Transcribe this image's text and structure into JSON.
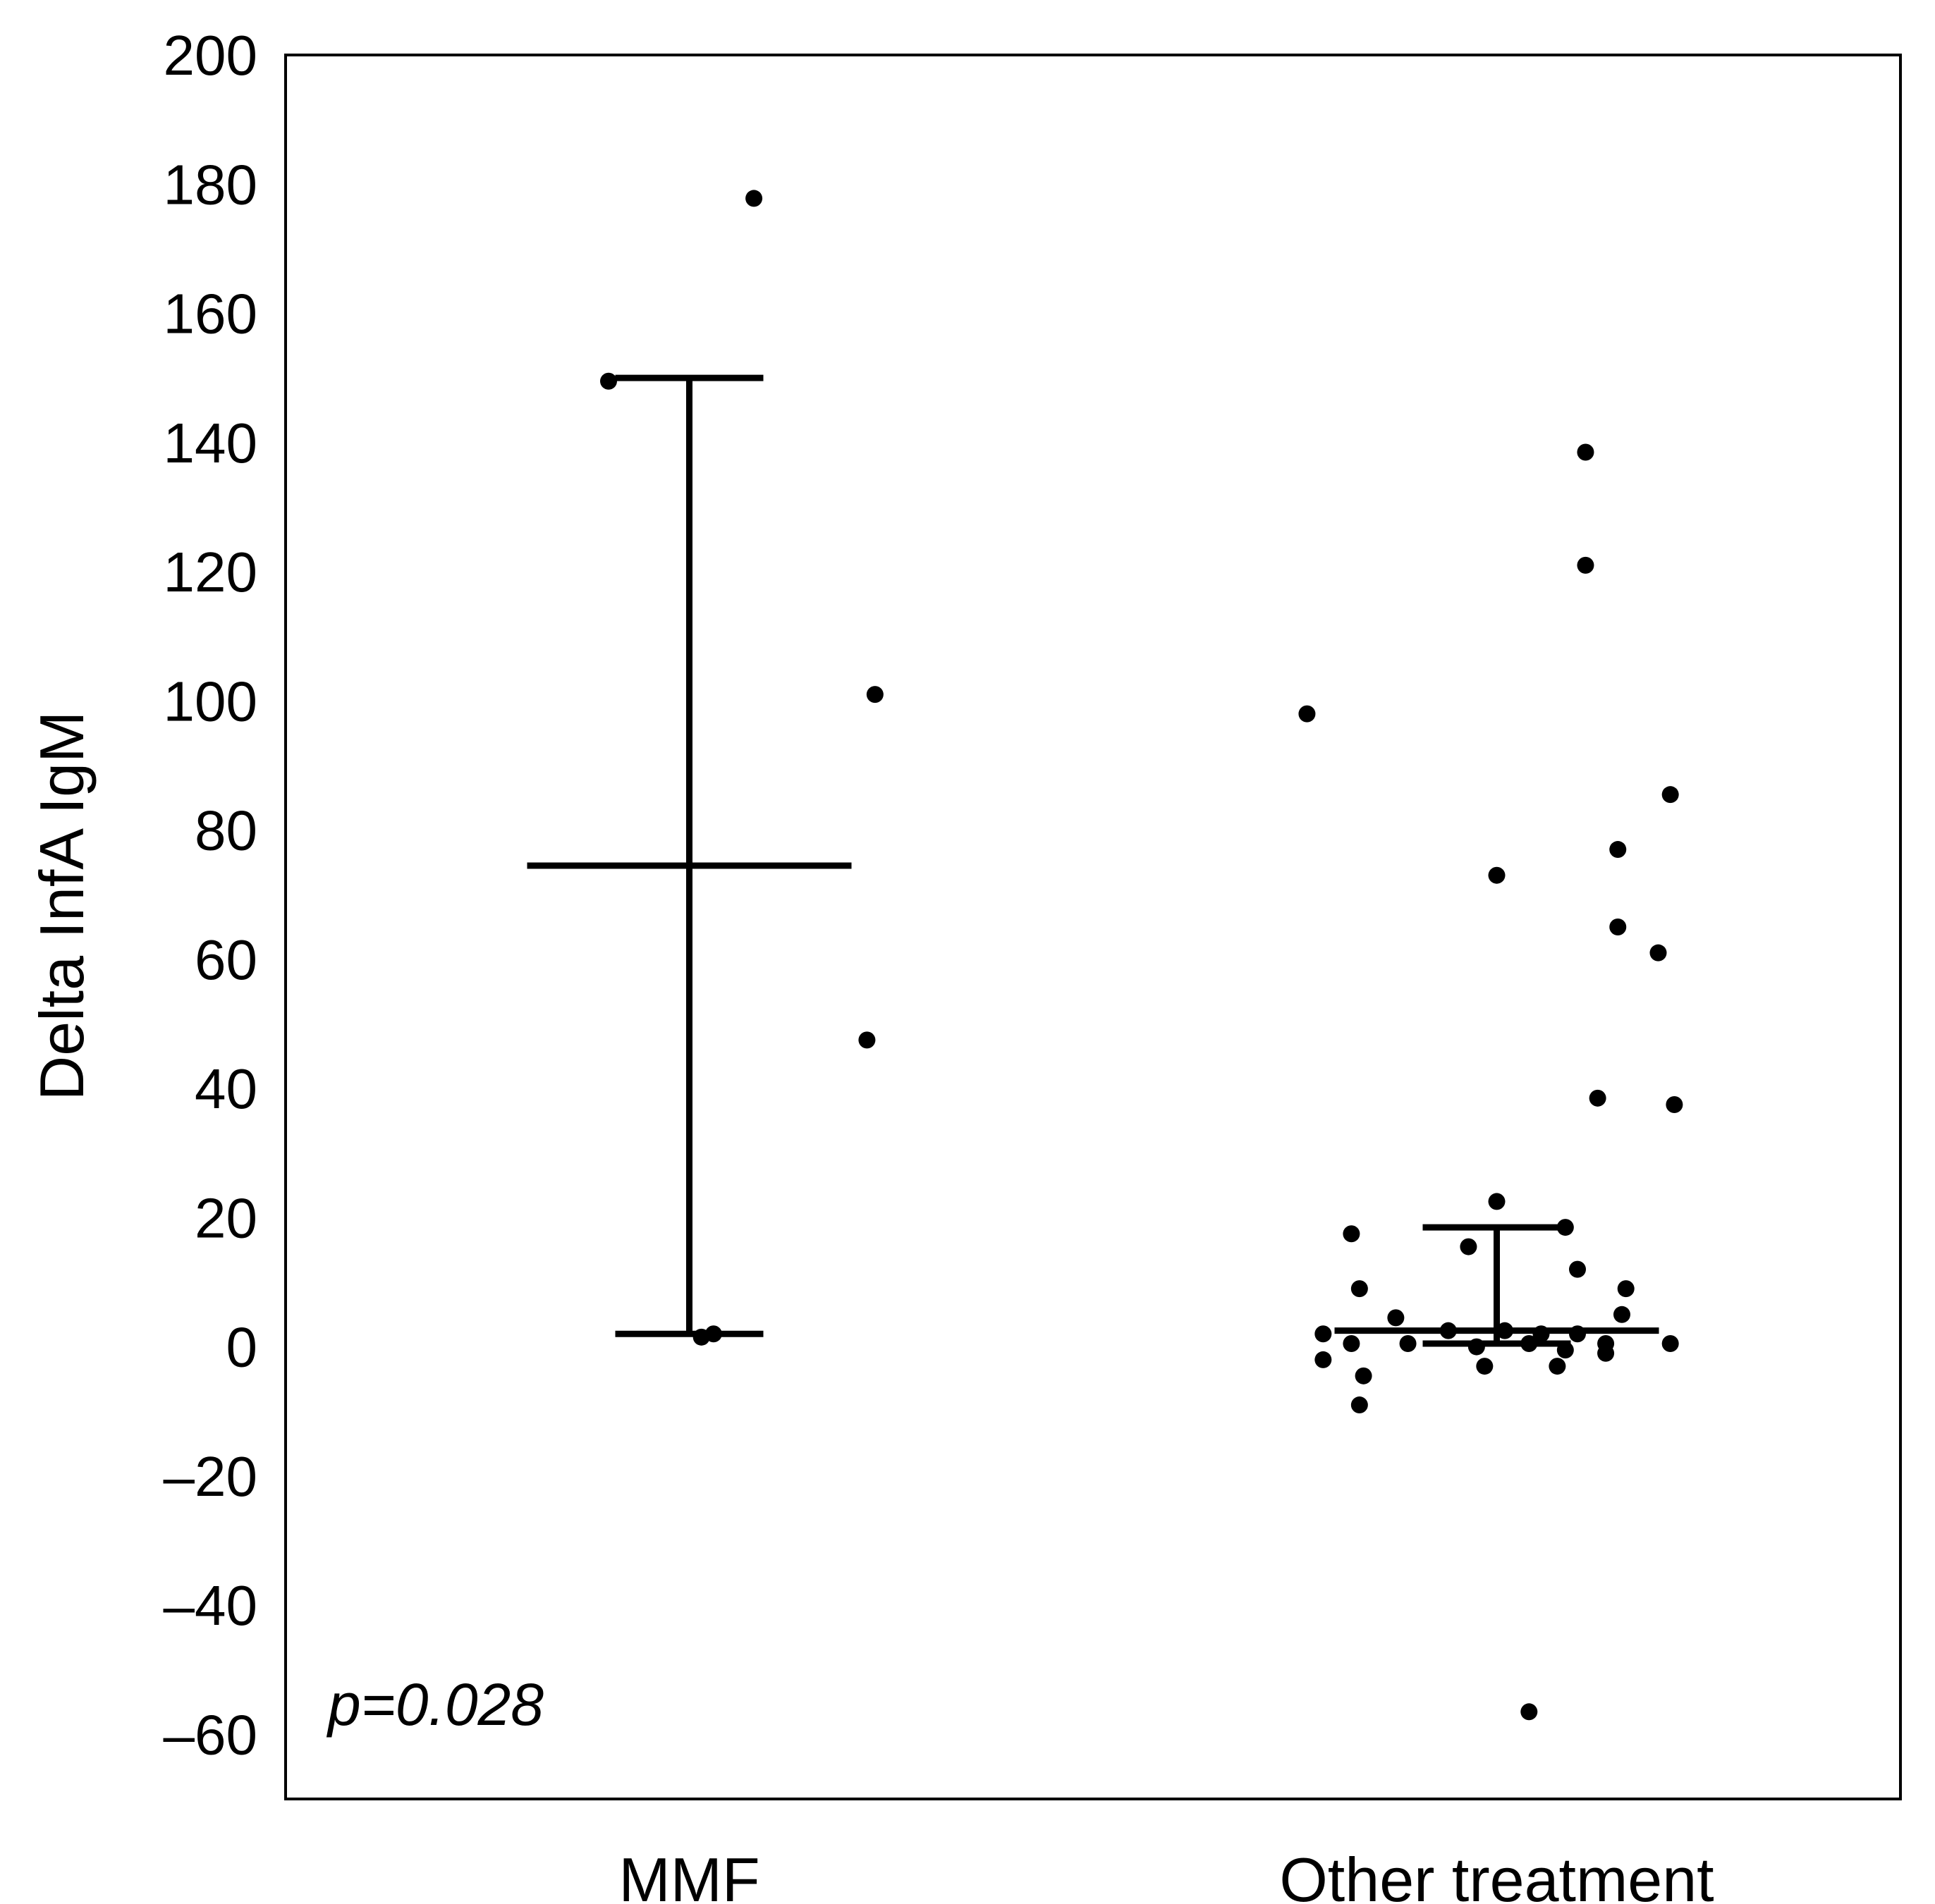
{
  "chart_data": {
    "type": "scatter",
    "title": "",
    "xlabel": "",
    "ylabel": "Delta InfA IgM",
    "ylim": [
      -70,
      200
    ],
    "yticks": [
      200,
      180,
      160,
      140,
      120,
      100,
      80,
      60,
      40,
      20,
      0,
      -20,
      -40,
      -60
    ],
    "ytick_labels": [
      "200",
      "180",
      "160",
      "140",
      "120",
      "100",
      "80",
      "60",
      "40",
      "20",
      "0",
      "–20",
      "–40",
      "–60"
    ],
    "categories": [
      "MMF",
      "Other treatment"
    ],
    "grid": false,
    "annotation": "p=0.028",
    "series": [
      {
        "name": "MMF",
        "summary": {
          "median": 74.5,
          "q1": 2,
          "q3": 150
        },
        "points": [
          {
            "x": 0.16,
            "y": 177.8
          },
          {
            "x": -0.2,
            "y": 149.5
          },
          {
            "x": 0.46,
            "y": 101
          },
          {
            "x": 0.44,
            "y": 47.5
          },
          {
            "x": 0.03,
            "y": 1.5
          },
          {
            "x": 0.06,
            "y": 2
          }
        ]
      },
      {
        "name": "Other treatment",
        "summary": {
          "median": 2.5,
          "q1": 0.5,
          "q3": 18.5
        },
        "points": [
          {
            "x": 0.22,
            "y": 138.5
          },
          {
            "x": 0.22,
            "y": 121
          },
          {
            "x": -0.47,
            "y": 98
          },
          {
            "x": 0.43,
            "y": 85.5
          },
          {
            "x": 0.3,
            "y": 77
          },
          {
            "x": 0.0,
            "y": 73
          },
          {
            "x": 0.3,
            "y": 65
          },
          {
            "x": 0.4,
            "y": 61
          },
          {
            "x": 0.25,
            "y": 38.5
          },
          {
            "x": 0.44,
            "y": 37.5
          },
          {
            "x": 0.0,
            "y": 22.5
          },
          {
            "x": 0.17,
            "y": 18.5
          },
          {
            "x": -0.36,
            "y": 17.5
          },
          {
            "x": -0.07,
            "y": 15.5
          },
          {
            "x": 0.2,
            "y": 12
          },
          {
            "x": -0.34,
            "y": 9
          },
          {
            "x": 0.32,
            "y": 9
          },
          {
            "x": -0.25,
            "y": 4.5
          },
          {
            "x": 0.31,
            "y": 5
          },
          {
            "x": -0.43,
            "y": 2
          },
          {
            "x": -0.12,
            "y": 2.5
          },
          {
            "x": 0.02,
            "y": 2.5
          },
          {
            "x": 0.11,
            "y": 2
          },
          {
            "x": 0.2,
            "y": 2
          },
          {
            "x": -0.36,
            "y": 0.5
          },
          {
            "x": -0.22,
            "y": 0.5
          },
          {
            "x": -0.05,
            "y": 0
          },
          {
            "x": 0.08,
            "y": 0.5
          },
          {
            "x": 0.17,
            "y": -0.5
          },
          {
            "x": 0.27,
            "y": 0.5
          },
          {
            "x": 0.43,
            "y": 0.5
          },
          {
            "x": -0.43,
            "y": -2
          },
          {
            "x": 0.27,
            "y": -1
          },
          {
            "x": -0.33,
            "y": -4.5
          },
          {
            "x": -0.03,
            "y": -3
          },
          {
            "x": 0.15,
            "y": -3
          },
          {
            "x": -0.34,
            "y": -9
          },
          {
            "x": 0.08,
            "y": -56.5
          }
        ]
      }
    ]
  }
}
